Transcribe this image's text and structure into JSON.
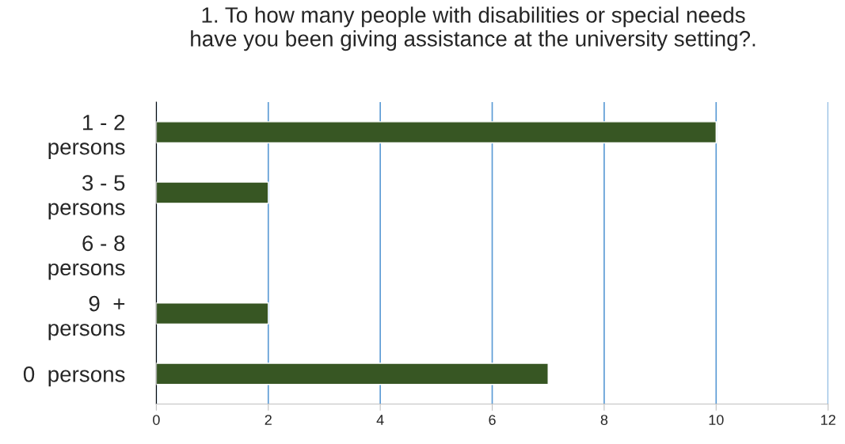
{
  "chart_data": {
    "type": "bar",
    "orientation": "horizontal",
    "title": "1. To how many people with disabilities or special needs\nhave you been giving assistance at the university setting?.",
    "categories": [
      "1 - 2\npersons",
      "3 - 5\npersons",
      "6 - 8\npersons",
      "9  +\npersons",
      "0  persons"
    ],
    "values": [
      10,
      2,
      null,
      2,
      7
    ],
    "color": "#375623",
    "xlim": [
      0,
      12
    ],
    "xticks": [
      0,
      2,
      4,
      6,
      8,
      10,
      12
    ],
    "grid": "x",
    "legend": false
  }
}
